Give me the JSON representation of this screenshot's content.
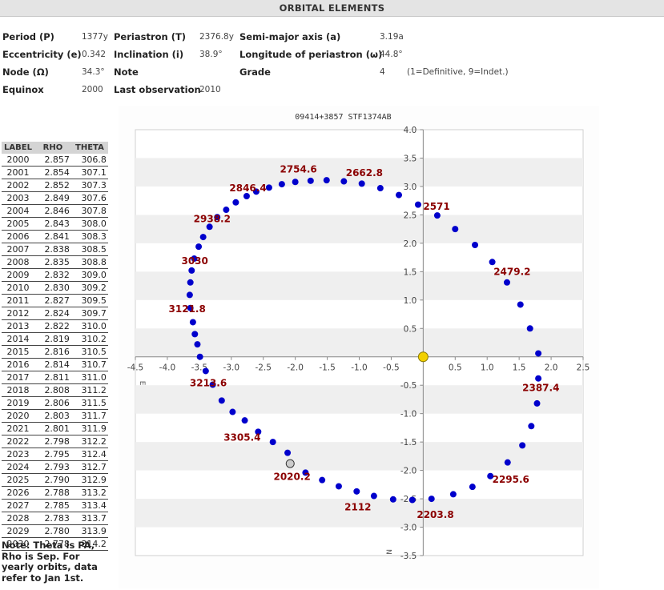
{
  "header": {
    "title": "ORBITAL ELEMENTS"
  },
  "elements": {
    "period": {
      "label": "Period (P)",
      "value": "1377y"
    },
    "periastron": {
      "label": "Periastron (T)",
      "value": "2376.8y"
    },
    "semimajor": {
      "label": "Semi-major axis (a)",
      "value": "3.19a"
    },
    "eccentricity": {
      "label": "Eccentricity (e)",
      "value": "0.342"
    },
    "inclination": {
      "label": "Inclination (i)",
      "value": "38.9°"
    },
    "long_periastron": {
      "label": "Longitude of periastron (ω)",
      "value": "44.8°"
    },
    "node": {
      "label": "Node (Ω)",
      "value": "34.3°"
    },
    "note": {
      "label": "Note",
      "value": ""
    },
    "grade": {
      "label": "Grade",
      "value": "4",
      "hint": "(1=Definitive, 9=Indet.)"
    },
    "equinox": {
      "label": "Equinox",
      "value": "2000"
    },
    "last_obs": {
      "label": "Last observation",
      "value": "2010"
    }
  },
  "ephemeris": {
    "headers": [
      "LABEL",
      "RHO",
      "THETA"
    ],
    "rows": [
      [
        "2000",
        "2.857",
        "306.8"
      ],
      [
        "2001",
        "2.854",
        "307.1"
      ],
      [
        "2002",
        "2.852",
        "307.3"
      ],
      [
        "2003",
        "2.849",
        "307.6"
      ],
      [
        "2004",
        "2.846",
        "307.8"
      ],
      [
        "2005",
        "2.843",
        "308.0"
      ],
      [
        "2006",
        "2.841",
        "308.3"
      ],
      [
        "2007",
        "2.838",
        "308.5"
      ],
      [
        "2008",
        "2.835",
        "308.8"
      ],
      [
        "2009",
        "2.832",
        "309.0"
      ],
      [
        "2010",
        "2.830",
        "309.2"
      ],
      [
        "2011",
        "2.827",
        "309.5"
      ],
      [
        "2012",
        "2.824",
        "309.7"
      ],
      [
        "2013",
        "2.822",
        "310.0"
      ],
      [
        "2014",
        "2.819",
        "310.2"
      ],
      [
        "2015",
        "2.816",
        "310.5"
      ],
      [
        "2016",
        "2.814",
        "310.7"
      ],
      [
        "2017",
        "2.811",
        "311.0"
      ],
      [
        "2018",
        "2.808",
        "311.2"
      ],
      [
        "2019",
        "2.806",
        "311.5"
      ],
      [
        "2020",
        "2.803",
        "311.7"
      ],
      [
        "2021",
        "2.801",
        "311.9"
      ],
      [
        "2022",
        "2.798",
        "312.2"
      ],
      [
        "2023",
        "2.795",
        "312.4"
      ],
      [
        "2024",
        "2.793",
        "312.7"
      ],
      [
        "2025",
        "2.790",
        "312.9"
      ],
      [
        "2026",
        "2.788",
        "313.2"
      ],
      [
        "2027",
        "2.785",
        "313.4"
      ],
      [
        "2028",
        "2.783",
        "313.7"
      ],
      [
        "2029",
        "2.780",
        "313.9"
      ],
      [
        "2030",
        "2.778",
        "314.2"
      ]
    ]
  },
  "note_text": "Note: Theta is PA, Rho is Sep. For yearly orbits, data refer to Jan 1st.",
  "chart_data": {
    "type": "scatter",
    "title": "09414+3857 STF1374AB",
    "xlim": [
      -4.5,
      2.5
    ],
    "ylim": [
      -3.5,
      4.0
    ],
    "x_ticks": [
      -4.5,
      -4.0,
      -3.5,
      -3.0,
      -2.5,
      -2.0,
      -1.5,
      -1.0,
      -0.5,
      0.5,
      1.0,
      1.5,
      2.0,
      2.5
    ],
    "y_ticks": [
      4.0,
      3.5,
      3.0,
      2.5,
      2.0,
      1.5,
      1.0,
      0.5,
      -0.5,
      -1.0,
      -1.5,
      -2.0,
      -2.5,
      -3.0,
      -3.5
    ],
    "x_tick_labels": [
      "-4.5",
      "-4.0",
      "-3.5",
      "-3.0",
      "-2.5",
      "-2.0",
      "-1.5",
      "-1.0",
      "-0.5",
      "0.5",
      "1.0",
      "1.5",
      "2.0",
      "2.5"
    ],
    "y_tick_labels": [
      "4.0",
      "3.5",
      "3.0",
      "2.5",
      "2.0",
      "1.5",
      "1.0",
      "0.5",
      "-0.5",
      "-1.0",
      "-1.5",
      "-2.0",
      "-2.5",
      "-3.0",
      "-3.5"
    ],
    "axis_marks": {
      "e": "E",
      "n": "N"
    },
    "primary": {
      "x": 0,
      "y": 0,
      "color": "#f2d000"
    },
    "current_position": {
      "x": -2.08,
      "y": -1.88,
      "label": "2020.2",
      "color": "#cccccc"
    },
    "orbit_points": [
      [
        1.8,
        0.06
      ],
      [
        1.67,
        0.5
      ],
      [
        1.52,
        0.92
      ],
      [
        1.31,
        1.31
      ],
      [
        1.08,
        1.67
      ],
      [
        0.81,
        1.97
      ],
      [
        0.5,
        2.25
      ],
      [
        0.22,
        2.49
      ],
      [
        -0.08,
        2.68
      ],
      [
        -0.38,
        2.85
      ],
      [
        -0.67,
        2.97
      ],
      [
        -0.96,
        3.05
      ],
      [
        -1.24,
        3.09
      ],
      [
        -1.51,
        3.11
      ],
      [
        -1.76,
        3.1
      ],
      [
        -2.0,
        3.08
      ],
      [
        -2.21,
        3.04
      ],
      [
        -2.41,
        2.98
      ],
      [
        -2.61,
        2.91
      ],
      [
        -2.76,
        2.83
      ],
      [
        -2.93,
        2.72
      ],
      [
        -3.08,
        2.59
      ],
      [
        -3.22,
        2.46
      ],
      [
        -3.34,
        2.29
      ],
      [
        -3.44,
        2.11
      ],
      [
        -3.51,
        1.94
      ],
      [
        -3.58,
        1.73
      ],
      [
        -3.62,
        1.52
      ],
      [
        -3.64,
        1.31
      ],
      [
        -3.65,
        1.09
      ],
      [
        -3.64,
        0.86
      ],
      [
        -3.6,
        0.61
      ],
      [
        -3.57,
        0.4
      ],
      [
        -3.53,
        0.22
      ],
      [
        -3.49,
        0.0
      ],
      [
        -3.4,
        -0.25
      ],
      [
        -3.29,
        -0.49
      ],
      [
        -3.15,
        -0.77
      ],
      [
        -2.98,
        -0.97
      ],
      [
        -2.79,
        -1.12
      ],
      [
        -2.58,
        -1.32
      ],
      [
        -2.35,
        -1.5
      ],
      [
        -2.12,
        -1.69
      ],
      [
        -1.84,
        -2.04
      ],
      [
        -1.58,
        -2.17
      ],
      [
        -1.32,
        -2.28
      ],
      [
        -1.04,
        -2.37
      ],
      [
        -0.77,
        -2.45
      ],
      [
        -0.47,
        -2.51
      ],
      [
        -0.17,
        -2.52
      ],
      [
        0.13,
        -2.5
      ],
      [
        0.47,
        -2.42
      ],
      [
        0.77,
        -2.29
      ],
      [
        1.05,
        -2.1
      ],
      [
        1.32,
        -1.86
      ],
      [
        1.55,
        -1.56
      ],
      [
        1.69,
        -1.22
      ],
      [
        1.78,
        -0.82
      ],
      [
        1.8,
        -0.38
      ]
    ],
    "annotations": [
      {
        "x": 0.0,
        "y": 2.65,
        "label": "2571"
      },
      {
        "x": 1.1,
        "y": 1.5,
        "label": "2479.2"
      },
      {
        "x": 1.55,
        "y": -0.55,
        "label": "2387.4"
      },
      {
        "x": 1.08,
        "y": -2.16,
        "label": "2295.6"
      },
      {
        "x": -0.1,
        "y": -2.78,
        "label": "2203.8"
      },
      {
        "x": -1.23,
        "y": -2.65,
        "label": "2112"
      },
      {
        "x": -2.34,
        "y": -2.11,
        "label": "2020.2"
      },
      {
        "x": -3.12,
        "y": -1.42,
        "label": "3305.4"
      },
      {
        "x": -3.65,
        "y": -0.46,
        "label": "3213.6"
      },
      {
        "x": -3.98,
        "y": 0.84,
        "label": "3121.8"
      },
      {
        "x": -3.78,
        "y": 1.69,
        "label": "3030"
      },
      {
        "x": -3.59,
        "y": 2.43,
        "label": "2938.2"
      },
      {
        "x": -3.03,
        "y": 2.97,
        "label": "2846.4"
      },
      {
        "x": -2.24,
        "y": 3.3,
        "label": "2754.6"
      },
      {
        "x": -1.21,
        "y": 3.24,
        "label": "2662.8"
      }
    ],
    "colors": {
      "points": "#0000cc",
      "labels": "#8b0000",
      "band": "#efefef"
    }
  }
}
